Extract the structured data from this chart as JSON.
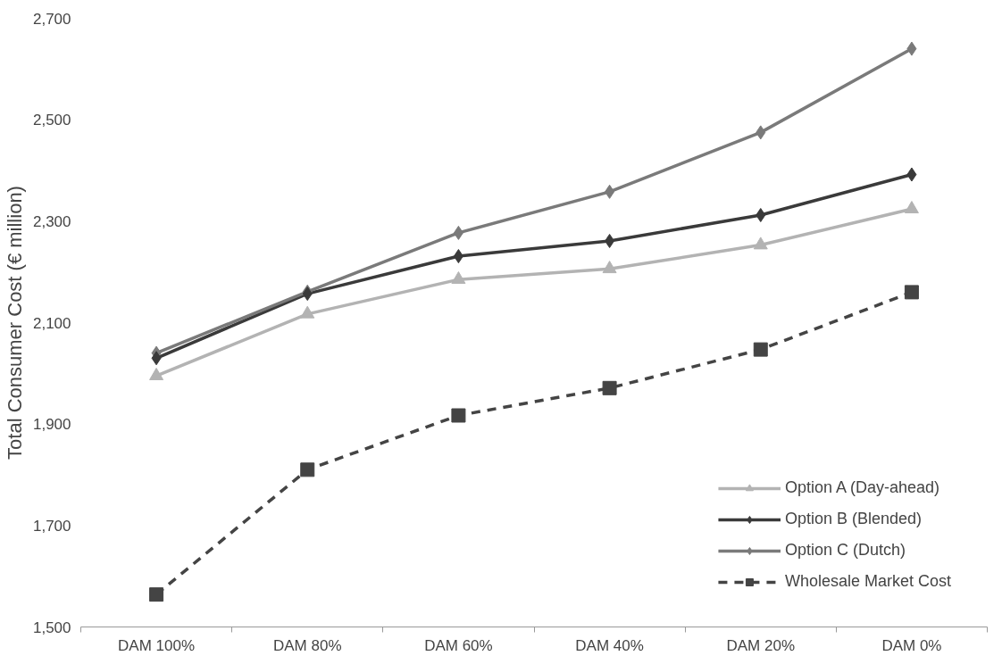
{
  "chart_data": {
    "type": "line",
    "ylabel": "Total Consumer Cost (€ million)",
    "categories": [
      "DAM 100%",
      "DAM 80%",
      "DAM 60%",
      "DAM 40%",
      "DAM 20%",
      "DAM 0%"
    ],
    "series": [
      {
        "name": "Option A (Day-ahead)",
        "color": "#b3b3b3",
        "marker": "triangle",
        "line_style": "solid",
        "values": [
          1995,
          2117,
          2185,
          2206,
          2253,
          2324
        ]
      },
      {
        "name": "Option B (Blended)",
        "color": "#3a3a3a",
        "marker": "diamond",
        "line_style": "solid",
        "values": [
          2030,
          2157,
          2231,
          2261,
          2312,
          2392
        ]
      },
      {
        "name": "Option C (Dutch)",
        "color": "#7a7a7a",
        "marker": "diamond",
        "line_style": "solid",
        "values": [
          2040,
          2161,
          2277,
          2358,
          2475,
          2640
        ]
      },
      {
        "name": "Wholesale Market Cost",
        "color": "#444444",
        "marker": "square",
        "line_style": "dashed",
        "values": [
          1564,
          1810,
          1917,
          1971,
          2047,
          2160
        ]
      }
    ],
    "ylim": [
      1500,
      2700
    ],
    "yticks": [
      {
        "value": 1500,
        "label": "1,500"
      },
      {
        "value": 1700,
        "label": "1,700"
      },
      {
        "value": 1900,
        "label": "1,900"
      },
      {
        "value": 2100,
        "label": "2,100"
      },
      {
        "value": 2300,
        "label": "2,300"
      },
      {
        "value": 2500,
        "label": "2,500"
      },
      {
        "value": 2700,
        "label": "2,700"
      }
    ],
    "grid": false,
    "legend": "bottom right"
  }
}
